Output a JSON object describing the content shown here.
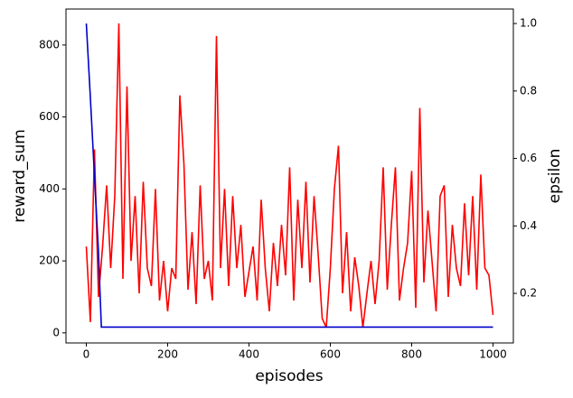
{
  "chart_data": {
    "type": "line",
    "xlabel": "episodes",
    "ylabel": "reward_sum",
    "y2label": "epsilon",
    "xlim": [
      -50,
      1050
    ],
    "xticks": [
      0,
      200,
      400,
      600,
      800,
      1000
    ],
    "ylim": [
      -28,
      900
    ],
    "yticks": [
      0,
      200,
      400,
      600,
      800
    ],
    "y2lim": [
      0.053,
      1.043
    ],
    "y2ticks": [
      0.2,
      0.4,
      0.6,
      0.8,
      {
        "value": 1,
        "label": "1.0"
      }
    ],
    "series": [
      {
        "name": "reward_sum",
        "color": "#ff0000",
        "x": [
          0,
          10,
          20,
          30,
          40,
          50,
          60,
          70,
          80,
          90,
          100,
          110,
          120,
          130,
          140,
          150,
          160,
          170,
          180,
          190,
          200,
          210,
          220,
          230,
          240,
          250,
          260,
          270,
          280,
          290,
          300,
          310,
          320,
          330,
          340,
          350,
          360,
          370,
          380,
          390,
          400,
          410,
          420,
          430,
          440,
          450,
          460,
          470,
          480,
          490,
          500,
          510,
          520,
          530,
          540,
          550,
          560,
          570,
          580,
          590,
          600,
          610,
          620,
          630,
          640,
          650,
          660,
          670,
          680,
          690,
          700,
          710,
          720,
          730,
          740,
          750,
          760,
          770,
          780,
          790,
          800,
          810,
          820,
          830,
          840,
          850,
          860,
          870,
          880,
          890,
          900,
          910,
          920,
          930,
          940,
          950,
          960,
          970,
          980,
          990,
          1000
        ],
        "values": [
          240,
          30,
          510,
          100,
          240,
          410,
          180,
          380,
          860,
          150,
          685,
          200,
          380,
          110,
          420,
          180,
          130,
          400,
          90,
          200,
          60,
          180,
          150,
          660,
          470,
          120,
          280,
          80,
          410,
          150,
          200,
          90,
          825,
          180,
          400,
          130,
          380,
          180,
          300,
          100,
          170,
          240,
          90,
          370,
          180,
          60,
          250,
          130,
          300,
          160,
          460,
          90,
          370,
          180,
          420,
          140,
          380,
          220,
          40,
          15,
          180,
          400,
          520,
          110,
          280,
          60,
          210,
          130,
          15,
          110,
          200,
          80,
          200,
          460,
          120,
          300,
          460,
          90,
          180,
          250,
          450,
          70,
          625,
          140,
          340,
          200,
          60,
          380,
          410,
          100,
          300,
          180,
          130,
          360,
          160,
          380,
          120,
          440,
          180,
          160,
          50
        ]
      },
      {
        "name": "epsilon",
        "color": "#0000cc",
        "axis": "y2",
        "x": [
          0,
          10,
          20,
          30,
          37,
          1000
        ],
        "values": [
          1.0,
          0.78,
          0.55,
          0.32,
          0.1,
          0.1
        ]
      }
    ]
  }
}
